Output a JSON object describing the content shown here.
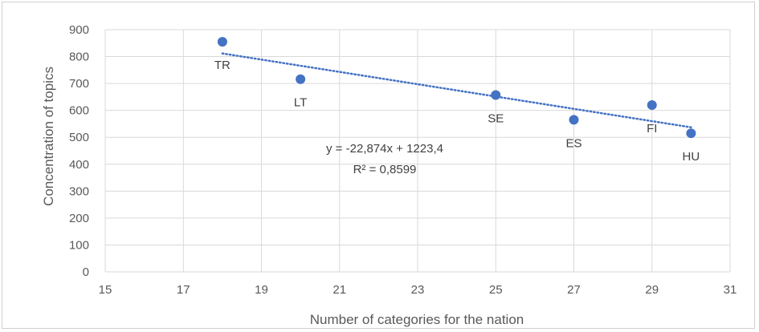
{
  "chart_data": {
    "type": "scatter",
    "xlabel": "Number of categories for the nation",
    "ylabel": "Concentration of topics",
    "xlim": [
      15,
      31
    ],
    "ylim": [
      0,
      900
    ],
    "x_ticks": [
      15,
      17,
      19,
      21,
      23,
      25,
      27,
      29,
      31
    ],
    "y_ticks": [
      0,
      100,
      200,
      300,
      400,
      500,
      600,
      700,
      800,
      900
    ],
    "grid": "vertical and horizontal major gridlines",
    "points": [
      {
        "label": "TR",
        "x": 18,
        "y": 855
      },
      {
        "label": "LT",
        "x": 20,
        "y": 716
      },
      {
        "label": "SE",
        "x": 25,
        "y": 657
      },
      {
        "label": "ES",
        "x": 27,
        "y": 565
      },
      {
        "label": "FI",
        "x": 29,
        "y": 620
      },
      {
        "label": "HU",
        "x": 30,
        "y": 515
      }
    ],
    "trendline": {
      "type": "linear",
      "x_range": [
        18,
        30
      ],
      "slope": -22.874,
      "intercept": 1223.4,
      "equation_text": "y = -22,874x + 1223,4",
      "r2_text": "R² = 0,8599",
      "style": "dotted"
    },
    "colors": {
      "marker": "#4472C4",
      "grid": "#D9D9D9",
      "axis_text": "#595959"
    }
  }
}
